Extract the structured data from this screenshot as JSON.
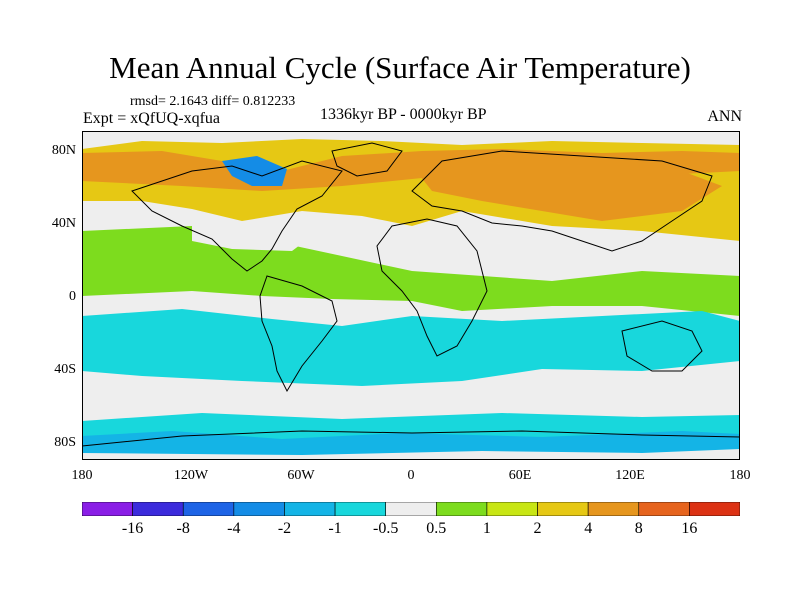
{
  "title": "Mean Annual Cycle (Surface Air Temperature)",
  "stats": "rmsd= 2.1643 diff= 0.812233",
  "experiment": "Expt = xQfUQ-xqfua",
  "period": "1336kyr BP - 0000kyr BP",
  "season": "ANN",
  "axes": {
    "lat_labels": [
      "80N",
      "40N",
      "0",
      "40S",
      "80S"
    ],
    "lon_labels": [
      "180",
      "120W",
      "60W",
      "0",
      "60E",
      "120E",
      "180"
    ]
  },
  "colorbar": {
    "labels": [
      "-16",
      "-8",
      "-4",
      "-2",
      "-1",
      "-0.5",
      "0.5",
      "1",
      "2",
      "4",
      "8",
      "16"
    ],
    "colors": [
      "#8a1ee6",
      "#3c2bdc",
      "#1e64e6",
      "#148ce6",
      "#14b4e6",
      "#18d7dc",
      "#eeeeee",
      "#7ddc1e",
      "#c8e614",
      "#e6c814",
      "#e6961e",
      "#e6641e",
      "#dc3214"
    ]
  }
}
